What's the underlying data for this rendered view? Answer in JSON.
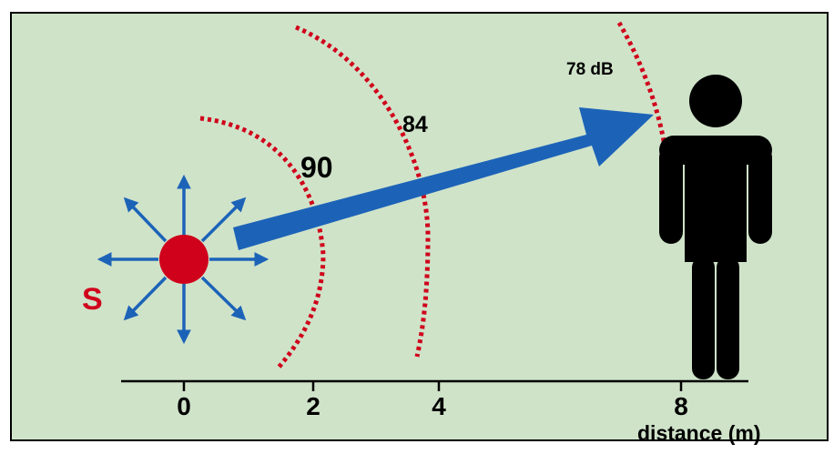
{
  "colors": {
    "background": "#cfe3c9",
    "frame": "#000000",
    "source": "#d0021b",
    "wave": "#d0021b",
    "arrow": "#1c63b8",
    "person": "#000000",
    "axis": "#000000"
  },
  "source": {
    "label": "S"
  },
  "wavefronts": [
    {
      "label": "90"
    },
    {
      "label": "84"
    },
    {
      "label": "78 dB"
    }
  ],
  "axis": {
    "title": "distance (m)",
    "ticks": [
      "0",
      "2",
      "4",
      "8"
    ]
  },
  "icons": [
    "sound-source-icon",
    "radiation-arrow-icon",
    "propagation-arrow-icon",
    "person-icon"
  ]
}
